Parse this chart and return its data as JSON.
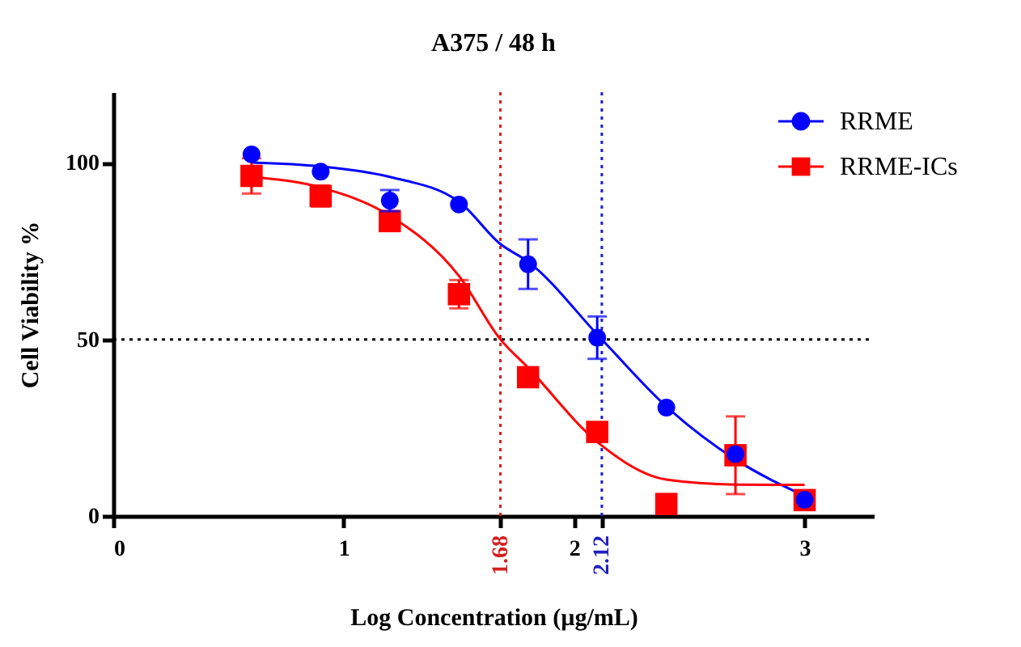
{
  "chart_data": {
    "type": "scatter",
    "title": "A375 / 48 h",
    "xlabel": "Log Concentration (µg/mL)",
    "ylabel": "Cell Viability %",
    "xlim": [
      0,
      3.3
    ],
    "ylim": [
      0,
      120
    ],
    "xticks": [
      0,
      1,
      2,
      3
    ],
    "yticks": [
      0,
      50,
      100
    ],
    "grid": false,
    "legend": "top right",
    "series": [
      {
        "name": "RRME",
        "marker": "circle",
        "color": "#0000ff",
        "x": [
          0.6,
          0.9,
          1.2,
          1.5,
          1.8,
          2.1,
          2.4,
          2.7,
          3.0
        ],
        "values": [
          102.4,
          97.5,
          89.3,
          88.2,
          71.3,
          50.5,
          30.7,
          17.5,
          4.6
        ],
        "errors": [
          null,
          null,
          3,
          null,
          7,
          6,
          null,
          null,
          null
        ]
      },
      {
        "name": "RRME-ICs",
        "marker": "square",
        "color": "#ff0000",
        "x": [
          0.6,
          0.9,
          1.2,
          1.5,
          1.8,
          2.1,
          2.4,
          2.7,
          3.0
        ],
        "values": [
          96.3,
          90.6,
          83.5,
          62.8,
          39.3,
          23.8,
          3.4,
          17.2,
          4.5
        ],
        "errors": [
          5,
          3,
          null,
          4,
          null,
          null,
          null,
          11,
          null
        ]
      },
      {
        "type": "line",
        "marker": "none",
        "color": "#0000ff",
        "x": [
          0.6,
          0.9,
          1.2,
          1.5,
          1.68,
          1.8,
          2.12,
          2.4,
          2.7,
          3.0
        ],
        "values": [
          100.1,
          99,
          96,
          89,
          77,
          72,
          50,
          31,
          16,
          5.7
        ]
      },
      {
        "type": "line",
        "marker": "none",
        "color": "#ff0000",
        "x": [
          0.6,
          0.9,
          1.2,
          1.5,
          1.68,
          1.8,
          2.1,
          2.4,
          2.7,
          3.0
        ],
        "values": [
          96,
          93,
          85,
          68,
          50,
          42,
          21,
          10.3,
          8.9,
          8.8
        ]
      }
    ],
    "ref_lines": [
      {
        "axis": "y",
        "value": 50,
        "color": "#000000",
        "line_style": "dotted"
      },
      {
        "axis": "x",
        "value": 1.68,
        "label": "1.68",
        "color": "#d42020",
        "line_style": "dotted"
      },
      {
        "axis": "x",
        "value": 2.12,
        "label": "2.12",
        "color": "#2020c0",
        "line_style": "dotted"
      }
    ]
  }
}
